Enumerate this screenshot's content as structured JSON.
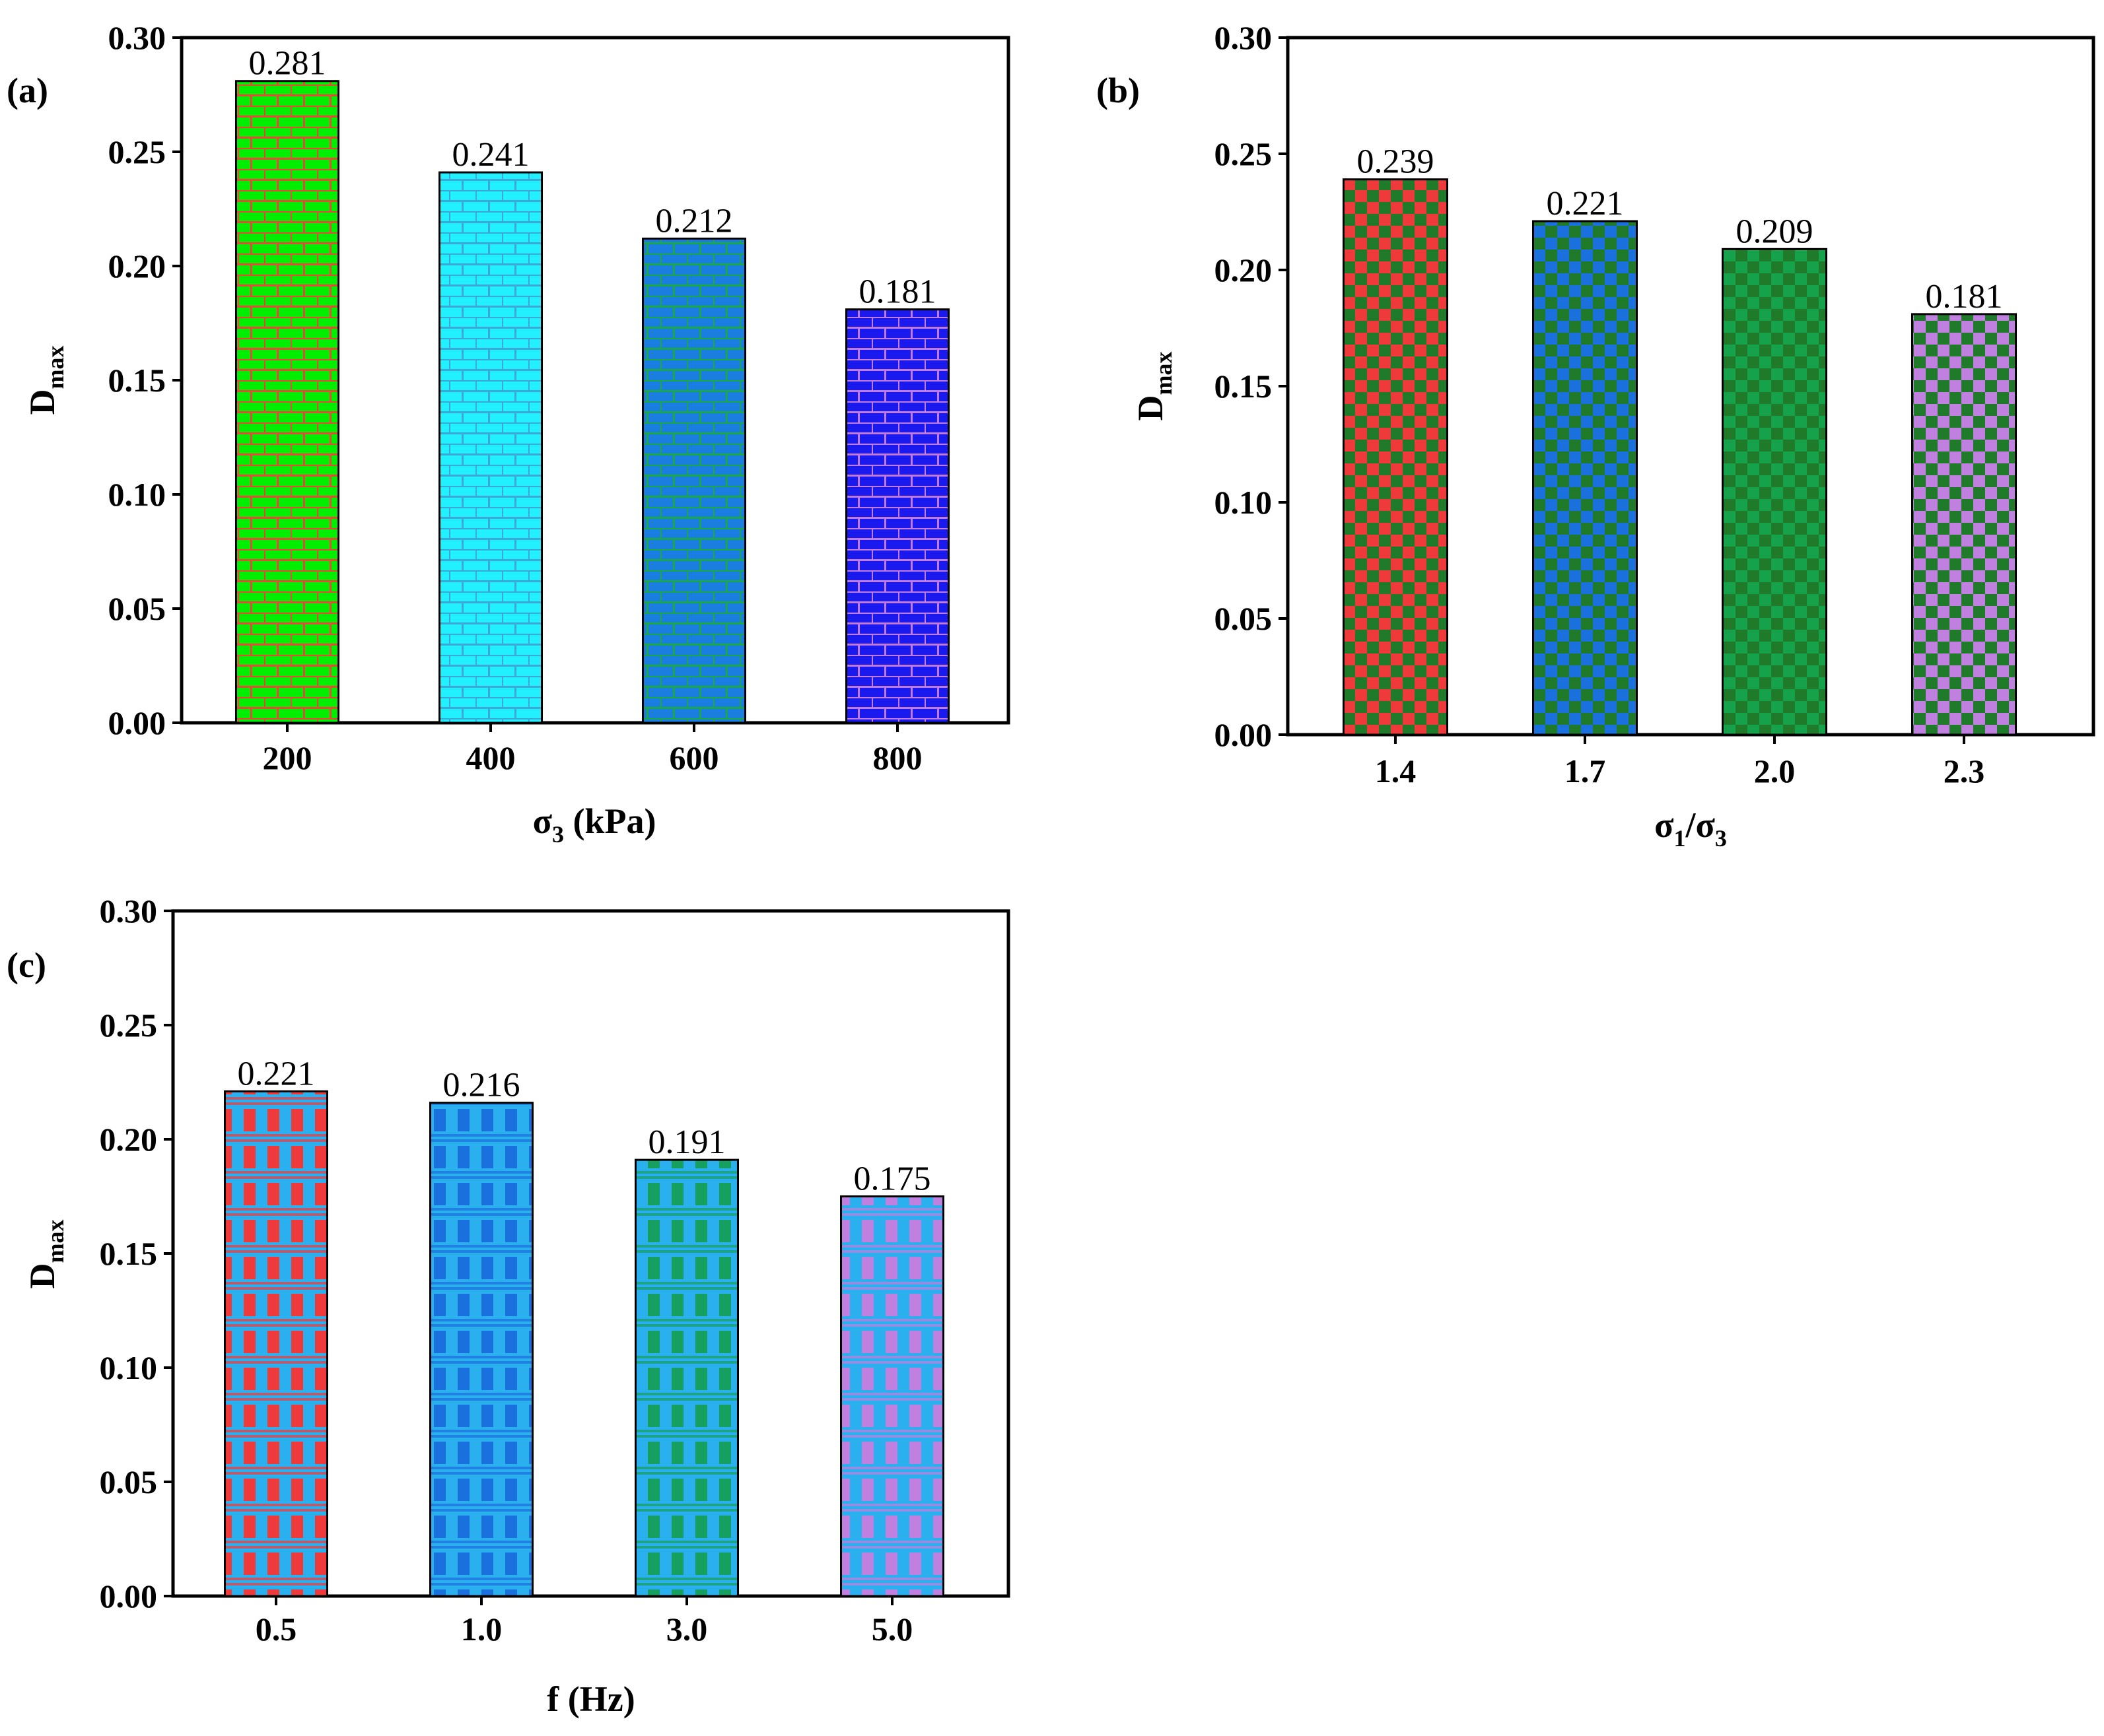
{
  "chart_data": [
    {
      "type": "bar",
      "panel_label": "(a)",
      "categories": [
        "200",
        "400",
        "600",
        "800"
      ],
      "values": [
        0.281,
        0.241,
        0.212,
        0.181
      ],
      "value_labels": [
        "0.281",
        "0.241",
        "0.212",
        "0.181"
      ],
      "ylabel": {
        "main": "D",
        "sub": "max"
      },
      "xlabel": {
        "main": "σ",
        "sub": "3",
        "rest": " (kPa)"
      },
      "ylim": [
        0,
        0.3
      ],
      "yticks": [
        "0.00",
        "0.05",
        "0.10",
        "0.15",
        "0.20",
        "0.25",
        "0.30"
      ],
      "pattern": "brick",
      "bar_colors": [
        {
          "fill": "#00ee00",
          "line": "#e8483c"
        },
        {
          "fill": "#22f0ff",
          "line": "#3aa8d8"
        },
        {
          "fill": "#1a7ee0",
          "line": "#1aa84a"
        },
        {
          "fill": "#1a1aee",
          "line": "#c07ae0"
        }
      ]
    },
    {
      "type": "bar",
      "panel_label": "(b)",
      "categories": [
        "1.4",
        "1.7",
        "2.0",
        "2.3"
      ],
      "values": [
        0.239,
        0.221,
        0.209,
        0.181
      ],
      "value_labels": [
        "0.239",
        "0.221",
        "0.209",
        "0.181"
      ],
      "ylabel": {
        "main": "D",
        "sub": "max"
      },
      "xlabel": {
        "main": "σ",
        "sub": "1",
        "mid": "/σ",
        "sub2": "3"
      },
      "ylim": [
        0,
        0.3
      ],
      "yticks": [
        "0.00",
        "0.05",
        "0.10",
        "0.15",
        "0.20",
        "0.25",
        "0.30"
      ],
      "pattern": "checker",
      "bar_colors": [
        {
          "fill": "#ee3a3a",
          "line": "#1f7a2a"
        },
        {
          "fill": "#1a70dd",
          "line": "#1f7a2a"
        },
        {
          "fill": "#16a24a",
          "line": "#1f7a2a"
        },
        {
          "fill": "#c080e0",
          "line": "#1f7a2a"
        }
      ]
    },
    {
      "type": "bar",
      "panel_label": "(c)",
      "categories": [
        "0.5",
        "1.0",
        "3.0",
        "5.0"
      ],
      "values": [
        0.221,
        0.216,
        0.191,
        0.175
      ],
      "value_labels": [
        "0.221",
        "0.216",
        "0.191",
        "0.175"
      ],
      "ylabel": {
        "main": "D",
        "sub": "max"
      },
      "xlabel": {
        "main": "f (Hz)"
      },
      "ylim": [
        0,
        0.3
      ],
      "yticks": [
        "0.00",
        "0.05",
        "0.10",
        "0.15",
        "0.20",
        "0.25",
        "0.30"
      ],
      "pattern": "weave",
      "bar_colors": [
        {
          "fill": "#ee3a3a",
          "line": "#2ab0ee"
        },
        {
          "fill": "#1a70dd",
          "line": "#2ab0ee"
        },
        {
          "fill": "#16a060",
          "line": "#2ab0ee"
        },
        {
          "fill": "#c080e0",
          "line": "#2ab0ee"
        }
      ]
    }
  ]
}
